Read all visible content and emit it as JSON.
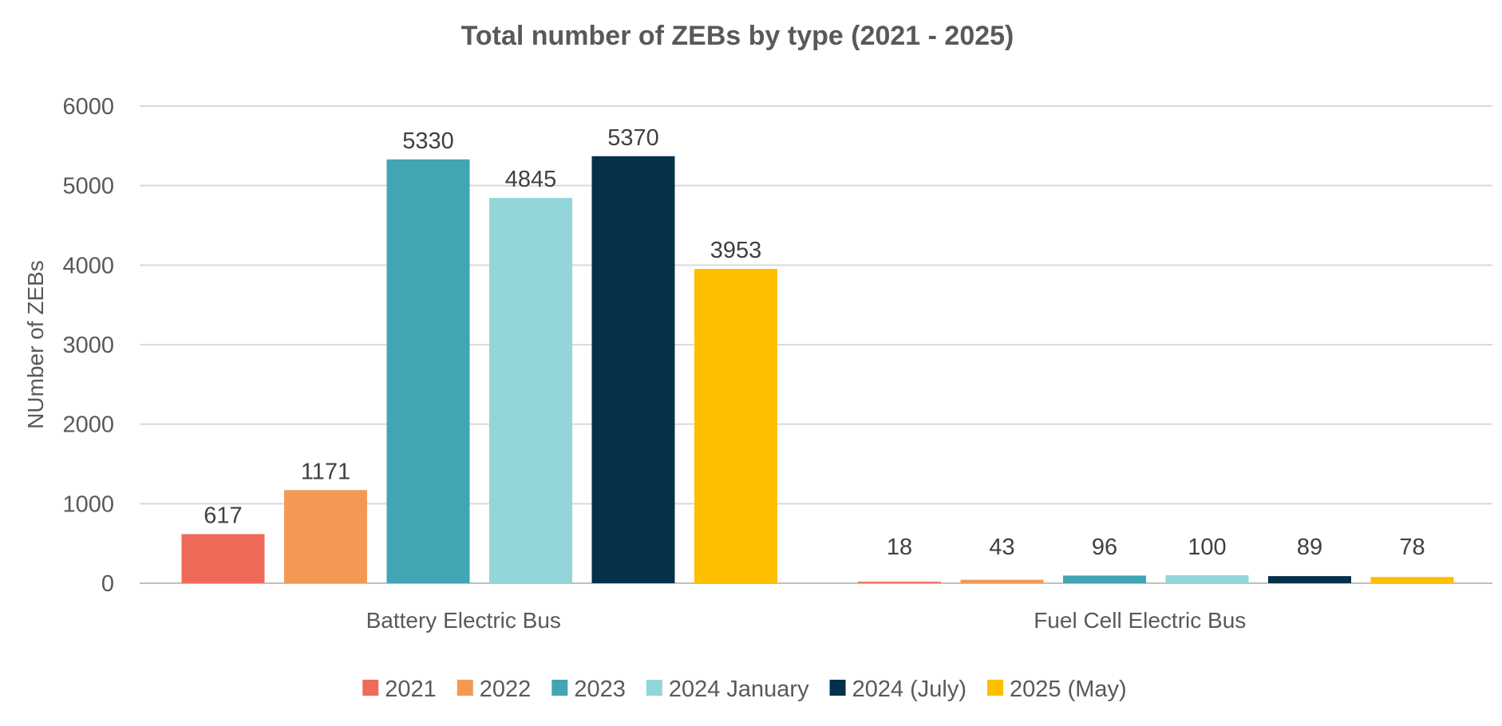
{
  "chart_data": {
    "type": "bar",
    "title": "Total number of ZEBs by type (2021 - 2025)",
    "xlabel": "",
    "ylabel": "NUmber of ZEBs",
    "ylim": [
      0,
      6000
    ],
    "yticks": [
      0,
      1000,
      2000,
      3000,
      4000,
      5000,
      6000
    ],
    "grid": true,
    "legend_position": "bottom",
    "categories": [
      "Battery Electric Bus",
      "Fuel Cell Electric Bus"
    ],
    "series": [
      {
        "name": "2021",
        "color": "#EE6A59",
        "values": [
          617,
          18
        ]
      },
      {
        "name": "2022",
        "color": "#F29A55",
        "values": [
          1171,
          43
        ]
      },
      {
        "name": "2023",
        "color": "#41A5B4",
        "values": [
          5330,
          96
        ]
      },
      {
        "name": "2024 January",
        "color": "#93D6D9",
        "values": [
          4845,
          100
        ]
      },
      {
        "name": "2024 (July)",
        "color": "#05304A",
        "values": [
          5370,
          89
        ]
      },
      {
        "name": "2025 (May)",
        "color": "#FDBF00",
        "values": [
          3953,
          78
        ]
      }
    ]
  }
}
